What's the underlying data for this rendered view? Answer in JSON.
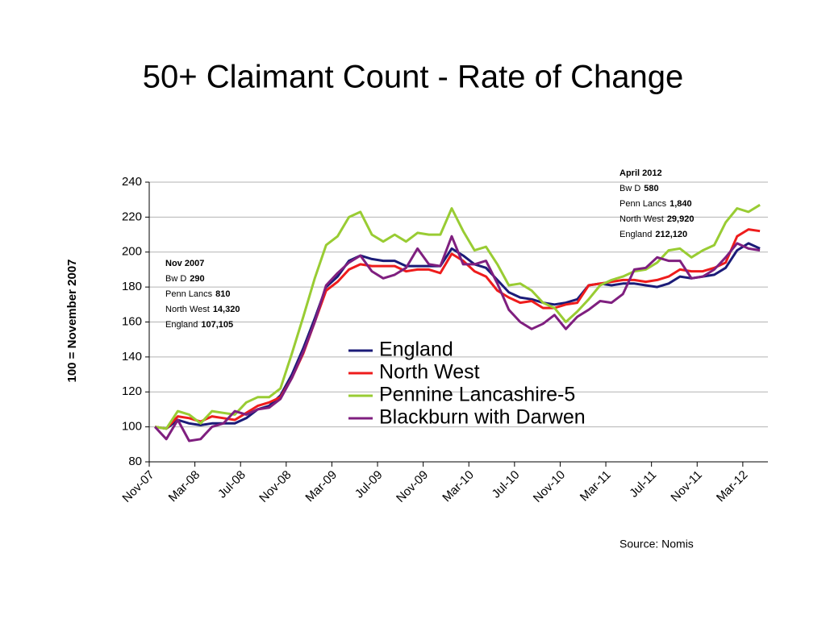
{
  "chart_data": {
    "type": "line",
    "title": "50+ Claimant Count - Rate of Change",
    "y_label": "100 = November 2007",
    "source": "Source: Nomis",
    "categories": [
      "Nov-07",
      null,
      null,
      null,
      "Mar-08",
      null,
      null,
      null,
      "Jul-08",
      null,
      null,
      null,
      "Nov-08",
      null,
      null,
      null,
      "Mar-09",
      null,
      null,
      null,
      "Jul-09",
      null,
      null,
      null,
      "Nov-09",
      null,
      null,
      null,
      "Mar-10",
      null,
      null,
      null,
      "Jul-10",
      null,
      null,
      null,
      "Nov-10",
      null,
      null,
      null,
      "Mar-11",
      null,
      null,
      null,
      "Jul-11",
      null,
      null,
      null,
      "Nov-11",
      null,
      null,
      null,
      "Mar-12",
      null
    ],
    "series": [
      {
        "name": "England",
        "color": "#1b1b78",
        "values": [
          100,
          99,
          104,
          102,
          101,
          102,
          102,
          102,
          105,
          110,
          112,
          118,
          130,
          145,
          162,
          180,
          186,
          195,
          198,
          196,
          195,
          195,
          192,
          192,
          192,
          192,
          202,
          198,
          193,
          191,
          184,
          177,
          174,
          173,
          171,
          170,
          171,
          173,
          181,
          182,
          181,
          182,
          182,
          181,
          180,
          182,
          186,
          185,
          186,
          187,
          191,
          201,
          205,
          202
        ]
      },
      {
        "name": "North West",
        "color": "#ee1c1c",
        "values": [
          100,
          99,
          106,
          105,
          103,
          106,
          105,
          104,
          108,
          112,
          114,
          117,
          128,
          142,
          160,
          178,
          183,
          190,
          193,
          192,
          192,
          192,
          189,
          190,
          190,
          188,
          199,
          195,
          189,
          186,
          178,
          174,
          171,
          172,
          168,
          168,
          170,
          171,
          181,
          182,
          183,
          184,
          184,
          183,
          184,
          186,
          190,
          189,
          189,
          191,
          194,
          209,
          213,
          212
        ]
      },
      {
        "name": "Pennine Lancashire-5",
        "color": "#99cc33",
        "values": [
          100,
          99,
          109,
          107,
          102,
          109,
          108,
          107,
          114,
          117,
          117,
          122,
          142,
          163,
          185,
          204,
          209,
          220,
          223,
          210,
          206,
          210,
          206,
          211,
          210,
          210,
          225,
          212,
          201,
          203,
          193,
          181,
          182,
          178,
          171,
          168,
          160,
          166,
          173,
          181,
          184,
          186,
          189,
          190,
          194,
          201,
          202,
          197,
          201,
          204,
          217,
          225,
          223,
          227
        ]
      },
      {
        "name": "Blackburn with Darwen",
        "color": "#7f1f7f",
        "values": [
          100,
          93,
          104,
          92,
          93,
          100,
          102,
          109,
          107,
          110,
          111,
          116,
          128,
          143,
          160,
          181,
          188,
          194,
          198,
          189,
          185,
          187,
          191,
          202,
          193,
          192,
          209,
          193,
          193,
          195,
          182,
          167,
          160,
          156,
          159,
          164,
          156,
          163,
          167,
          172,
          171,
          176,
          190,
          191,
          197,
          195,
          195,
          185,
          186,
          190,
          197,
          205,
          202,
          201
        ]
      }
    ],
    "ylim": [
      80,
      240
    ],
    "yticks": [
      80,
      100,
      120,
      140,
      160,
      180,
      200,
      220,
      240
    ],
    "grid": true,
    "annotations": [
      {
        "title": "Nov 2007",
        "lines": [
          {
            "label": "Bw D",
            "value": "290"
          },
          {
            "label": "Penn Lancs",
            "value": "810"
          },
          {
            "label": "North West",
            "value": "14,320"
          },
          {
            "label": "England",
            "value": "107,105"
          }
        ]
      },
      {
        "title": "April 2012",
        "lines": [
          {
            "label": "Bw D",
            "value": "580"
          },
          {
            "label": "Penn Lancs",
            "value": "1,840"
          },
          {
            "label": "North West",
            "value": "29,920"
          },
          {
            "label": "England",
            "value": "212,120"
          }
        ]
      }
    ]
  }
}
